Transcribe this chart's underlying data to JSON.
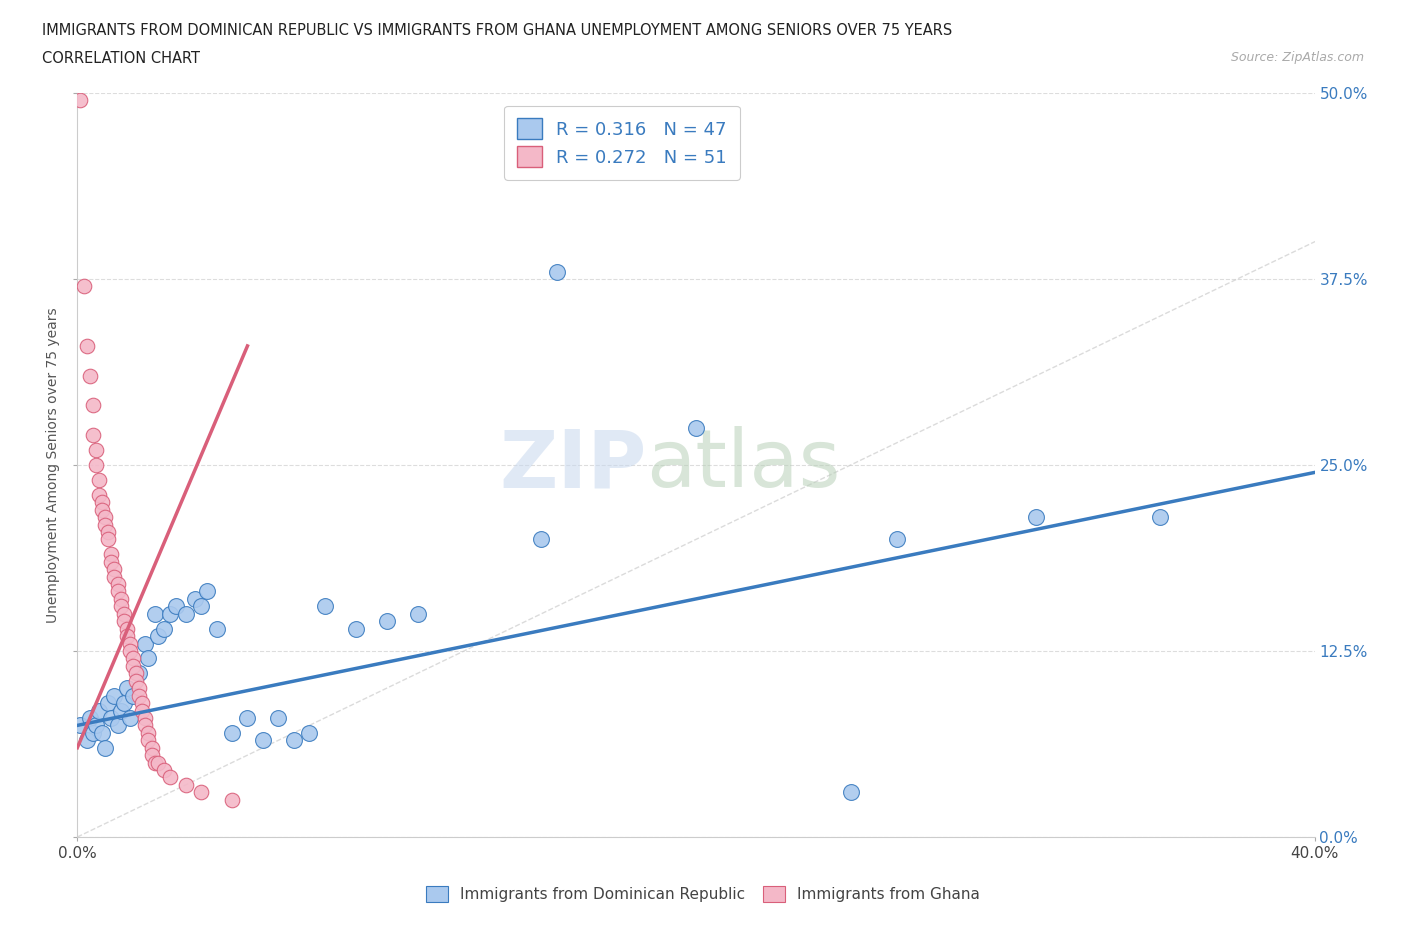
{
  "title_line1": "IMMIGRANTS FROM DOMINICAN REPUBLIC VS IMMIGRANTS FROM GHANA UNEMPLOYMENT AMONG SENIORS OVER 75 YEARS",
  "title_line2": "CORRELATION CHART",
  "source_text": "Source: ZipAtlas.com",
  "ylabel": "Unemployment Among Seniors over 75 years",
  "r_blue": 0.316,
  "n_blue": 47,
  "r_pink": 0.272,
  "n_pink": 51,
  "blue_color": "#aac9ee",
  "pink_color": "#f4b8c8",
  "blue_line_color": "#3a7bbf",
  "pink_line_color": "#d95f7a",
  "diag_line_color": "#cccccc",
  "blue_scatter": [
    [
      0.001,
      0.075
    ],
    [
      0.003,
      0.065
    ],
    [
      0.004,
      0.08
    ],
    [
      0.005,
      0.07
    ],
    [
      0.006,
      0.075
    ],
    [
      0.007,
      0.085
    ],
    [
      0.008,
      0.07
    ],
    [
      0.009,
      0.06
    ],
    [
      0.01,
      0.09
    ],
    [
      0.011,
      0.08
    ],
    [
      0.012,
      0.095
    ],
    [
      0.013,
      0.075
    ],
    [
      0.014,
      0.085
    ],
    [
      0.015,
      0.09
    ],
    [
      0.016,
      0.1
    ],
    [
      0.017,
      0.08
    ],
    [
      0.018,
      0.095
    ],
    [
      0.02,
      0.11
    ],
    [
      0.022,
      0.13
    ],
    [
      0.023,
      0.12
    ],
    [
      0.025,
      0.15
    ],
    [
      0.026,
      0.135
    ],
    [
      0.028,
      0.14
    ],
    [
      0.03,
      0.15
    ],
    [
      0.032,
      0.155
    ],
    [
      0.035,
      0.15
    ],
    [
      0.038,
      0.16
    ],
    [
      0.04,
      0.155
    ],
    [
      0.042,
      0.165
    ],
    [
      0.045,
      0.14
    ],
    [
      0.05,
      0.07
    ],
    [
      0.055,
      0.08
    ],
    [
      0.06,
      0.065
    ],
    [
      0.065,
      0.08
    ],
    [
      0.07,
      0.065
    ],
    [
      0.075,
      0.07
    ],
    [
      0.08,
      0.155
    ],
    [
      0.09,
      0.14
    ],
    [
      0.1,
      0.145
    ],
    [
      0.11,
      0.15
    ],
    [
      0.15,
      0.2
    ],
    [
      0.155,
      0.38
    ],
    [
      0.2,
      0.275
    ],
    [
      0.25,
      0.03
    ],
    [
      0.265,
      0.2
    ],
    [
      0.31,
      0.215
    ],
    [
      0.35,
      0.215
    ]
  ],
  "pink_scatter": [
    [
      0.001,
      0.495
    ],
    [
      0.002,
      0.37
    ],
    [
      0.003,
      0.33
    ],
    [
      0.004,
      0.31
    ],
    [
      0.005,
      0.29
    ],
    [
      0.005,
      0.27
    ],
    [
      0.006,
      0.26
    ],
    [
      0.006,
      0.25
    ],
    [
      0.007,
      0.24
    ],
    [
      0.007,
      0.23
    ],
    [
      0.008,
      0.225
    ],
    [
      0.008,
      0.22
    ],
    [
      0.009,
      0.215
    ],
    [
      0.009,
      0.21
    ],
    [
      0.01,
      0.205
    ],
    [
      0.01,
      0.2
    ],
    [
      0.011,
      0.19
    ],
    [
      0.011,
      0.185
    ],
    [
      0.012,
      0.18
    ],
    [
      0.012,
      0.175
    ],
    [
      0.013,
      0.17
    ],
    [
      0.013,
      0.165
    ],
    [
      0.014,
      0.16
    ],
    [
      0.014,
      0.155
    ],
    [
      0.015,
      0.15
    ],
    [
      0.015,
      0.145
    ],
    [
      0.016,
      0.14
    ],
    [
      0.016,
      0.135
    ],
    [
      0.017,
      0.13
    ],
    [
      0.017,
      0.125
    ],
    [
      0.018,
      0.12
    ],
    [
      0.018,
      0.115
    ],
    [
      0.019,
      0.11
    ],
    [
      0.019,
      0.105
    ],
    [
      0.02,
      0.1
    ],
    [
      0.02,
      0.095
    ],
    [
      0.021,
      0.09
    ],
    [
      0.021,
      0.085
    ],
    [
      0.022,
      0.08
    ],
    [
      0.022,
      0.075
    ],
    [
      0.023,
      0.07
    ],
    [
      0.023,
      0.065
    ],
    [
      0.024,
      0.06
    ],
    [
      0.024,
      0.055
    ],
    [
      0.025,
      0.05
    ],
    [
      0.026,
      0.05
    ],
    [
      0.028,
      0.045
    ],
    [
      0.03,
      0.04
    ],
    [
      0.035,
      0.035
    ],
    [
      0.04,
      0.03
    ],
    [
      0.05,
      0.025
    ]
  ],
  "blue_line": [
    [
      0.0,
      0.075
    ],
    [
      0.4,
      0.245
    ]
  ],
  "pink_line": [
    [
      0.0,
      0.06
    ],
    [
      0.055,
      0.33
    ]
  ],
  "diag_line": [
    [
      0.0,
      0.0
    ],
    [
      0.5,
      0.5
    ]
  ],
  "xlim": [
    0.0,
    0.4
  ],
  "ylim": [
    0.0,
    0.5
  ],
  "yticks": [
    0.0,
    0.125,
    0.25,
    0.375,
    0.5
  ],
  "ytick_labels": [
    "0.0%",
    "12.5%",
    "25.0%",
    "37.5%",
    "50.0%"
  ],
  "xticks": [
    0.0,
    0.4
  ],
  "xtick_labels": [
    "0.0%",
    "40.0%"
  ]
}
